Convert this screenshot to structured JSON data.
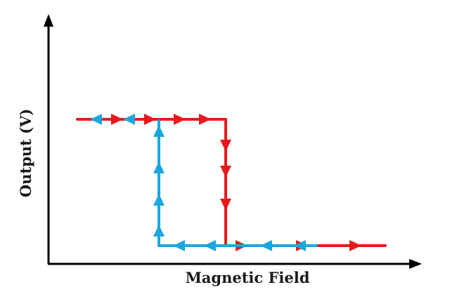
{
  "diagram": {
    "x_axis_label": "Magnetic Field",
    "y_axis_label": "Output (V)",
    "colors": {
      "forward_sweep": "#e8191c",
      "reverse_sweep": "#1aa7e0",
      "axes": "#000000"
    },
    "branches": [
      {
        "name": "",
        "description_key": "forward_sweep",
        "direction": "increasing field: high output until upper switching point, then drops to low output"
      },
      {
        "name": "",
        "description_key": "reverse_sweep",
        "direction": "decreasing field: low output until lower switching point, then rises to high output"
      }
    ]
  }
}
